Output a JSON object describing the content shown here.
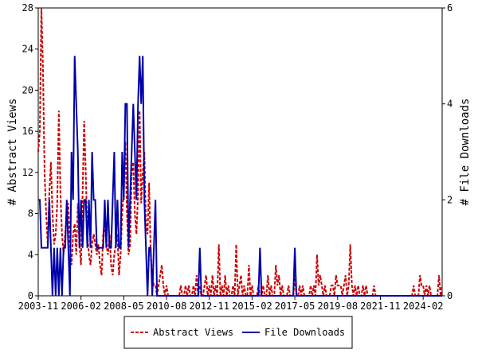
{
  "chart_data": {
    "type": "line",
    "x": [
      "2003-11",
      "2003-12",
      "2004-01",
      "2004-02",
      "2004-03",
      "2004-04",
      "2004-05",
      "2004-06",
      "2004-07",
      "2004-08",
      "2004-09",
      "2004-10",
      "2004-11",
      "2004-12",
      "2005-01",
      "2005-02",
      "2005-03",
      "2005-04",
      "2005-05",
      "2005-06",
      "2005-07",
      "2005-08",
      "2005-09",
      "2005-10",
      "2005-11",
      "2005-12",
      "2006-01",
      "2006-02",
      "2006-03",
      "2006-04",
      "2006-05",
      "2006-06",
      "2006-07",
      "2006-08",
      "2006-09",
      "2006-10",
      "2006-11",
      "2006-12",
      "2007-01",
      "2007-02",
      "2007-03",
      "2007-04",
      "2007-05",
      "2007-06",
      "2007-07",
      "2007-08",
      "2007-09",
      "2007-10",
      "2007-11",
      "2007-12",
      "2008-01",
      "2008-02",
      "2008-03",
      "2008-04",
      "2008-05",
      "2008-06",
      "2008-07",
      "2008-08",
      "2008-09",
      "2008-10",
      "2008-11",
      "2008-12",
      "2009-01",
      "2009-02",
      "2009-03",
      "2009-04",
      "2009-05",
      "2009-06",
      "2009-07",
      "2009-08",
      "2009-09",
      "2009-10",
      "2009-11",
      "2009-12",
      "2010-01",
      "2010-02",
      "2010-03",
      "2010-04",
      "2010-05",
      "2010-06",
      "2010-07",
      "2010-08",
      "2010-09",
      "2010-10",
      "2010-11",
      "2010-12",
      "2011-01",
      "2011-02",
      "2011-03",
      "2011-04",
      "2011-05",
      "2011-06",
      "2011-07",
      "2011-08",
      "2011-09",
      "2011-10",
      "2011-11",
      "2011-12",
      "2012-01",
      "2012-02",
      "2012-03",
      "2012-04",
      "2012-05",
      "2012-06",
      "2012-07",
      "2012-08",
      "2012-09",
      "2012-10",
      "2012-11",
      "2012-12",
      "2013-01",
      "2013-02",
      "2013-03",
      "2013-04",
      "2013-05",
      "2013-06",
      "2013-07",
      "2013-08",
      "2013-09",
      "2013-10",
      "2013-11",
      "2013-12",
      "2014-01",
      "2014-02",
      "2014-03",
      "2014-04",
      "2014-05",
      "2014-06",
      "2014-07",
      "2014-08",
      "2014-09",
      "2014-10",
      "2014-11",
      "2014-12",
      "2015-01",
      "2015-02",
      "2015-03",
      "2015-04",
      "2015-05",
      "2015-06",
      "2015-07",
      "2015-08",
      "2015-09",
      "2015-10",
      "2015-11",
      "2015-12",
      "2016-01",
      "2016-02",
      "2016-03",
      "2016-04",
      "2016-05",
      "2016-06",
      "2016-07",
      "2016-08",
      "2016-09",
      "2016-10",
      "2016-11",
      "2016-12",
      "2017-01",
      "2017-02",
      "2017-03",
      "2017-04",
      "2017-05",
      "2017-06",
      "2017-07",
      "2017-08",
      "2017-09",
      "2017-10",
      "2017-11",
      "2017-12",
      "2018-01",
      "2018-02",
      "2018-03",
      "2018-04",
      "2018-05",
      "2018-06",
      "2018-07",
      "2018-08",
      "2018-09",
      "2018-10",
      "2018-11",
      "2018-12",
      "2019-01",
      "2019-02",
      "2019-03",
      "2019-04",
      "2019-05",
      "2019-06",
      "2019-07",
      "2019-08",
      "2019-09",
      "2019-10",
      "2019-11",
      "2019-12",
      "2020-01",
      "2020-02",
      "2020-03",
      "2020-04",
      "2020-05",
      "2020-06",
      "2020-07",
      "2020-08",
      "2020-09",
      "2020-10",
      "2020-11",
      "2020-12",
      "2021-01",
      "2021-02",
      "2021-03",
      "2021-04",
      "2021-05",
      "2021-06",
      "2021-07",
      "2021-08",
      "2021-09",
      "2021-10",
      "2021-11",
      "2021-12",
      "2022-01",
      "2022-02",
      "2022-03",
      "2022-04",
      "2022-05",
      "2022-06",
      "2022-07",
      "2022-08",
      "2022-09",
      "2022-10",
      "2022-11",
      "2022-12",
      "2023-01",
      "2023-02",
      "2023-03",
      "2023-04",
      "2023-05",
      "2023-06",
      "2023-07",
      "2023-08",
      "2023-09",
      "2023-10",
      "2023-11",
      "2023-12",
      "2024-01",
      "2024-02",
      "2024-03",
      "2024-04",
      "2024-05",
      "2024-06",
      "2024-07",
      "2024-08",
      "2024-09",
      "2024-10",
      "2024-11",
      "2024-12",
      "2025-01",
      "2025-02"
    ],
    "xticks": [
      "2003-11",
      "2006-02",
      "2008-05",
      "2010-08",
      "2012-11",
      "2015-02",
      "2017-05",
      "2019-08",
      "2021-11",
      "2024-02"
    ],
    "ylabel": "# Abstract Views",
    "y2label": "# File Downloads",
    "ylim": [
      0,
      28
    ],
    "yticks": [
      0,
      4,
      8,
      12,
      16,
      20,
      24,
      28
    ],
    "y2lim": [
      0,
      6
    ],
    "y2ticks": [
      0,
      2,
      4,
      6
    ],
    "legend": "bottom",
    "series": [
      {
        "name": "Abstract Views",
        "color": "#cc0000",
        "dash": true,
        "values": [
          14,
          16,
          28,
          22,
          12,
          8,
          5,
          10,
          13,
          8,
          5,
          6,
          9,
          18,
          10,
          6,
          4,
          6,
          8,
          9,
          5,
          3,
          6,
          7,
          4,
          9,
          5,
          3,
          10,
          17,
          12,
          6,
          4,
          3,
          5,
          6,
          5,
          4,
          5,
          3,
          2,
          6,
          7,
          5,
          4,
          6,
          3,
          2,
          4,
          5,
          6,
          2,
          4,
          8,
          10,
          15,
          8,
          4,
          5,
          12,
          13,
          8,
          6,
          10,
          18,
          9,
          12,
          14,
          7,
          6,
          11,
          4,
          2,
          1,
          1,
          0,
          1,
          2,
          3,
          1,
          0,
          1,
          0,
          0,
          0,
          0,
          0,
          0,
          0,
          0,
          1,
          0,
          0,
          1,
          0,
          1,
          0,
          0,
          1,
          0,
          2,
          0,
          1,
          0,
          0,
          1,
          2,
          0,
          1,
          0,
          2,
          0,
          1,
          0,
          5,
          0,
          1,
          0,
          2,
          0,
          1,
          0,
          0,
          1,
          0,
          5,
          0,
          1,
          2,
          0,
          1,
          0,
          0,
          3,
          0,
          1,
          0,
          0,
          0,
          1,
          0,
          0,
          1,
          0,
          0,
          2,
          0,
          1,
          0,
          0,
          3,
          1,
          2,
          0,
          1,
          0,
          0,
          0,
          1,
          0,
          0,
          0,
          2,
          0,
          0,
          1,
          0,
          1,
          0,
          0,
          0,
          0,
          1,
          0,
          1,
          0,
          4,
          1,
          2,
          1,
          0,
          1,
          0,
          0,
          0,
          1,
          1,
          0,
          2,
          1,
          1,
          1,
          0,
          1,
          2,
          0,
          1,
          5,
          1,
          0,
          1,
          0,
          1,
          0,
          0,
          1,
          0,
          1,
          0,
          0,
          0,
          0,
          1,
          0,
          0,
          0,
          0,
          0,
          0,
          0,
          0,
          0,
          0,
          0,
          0,
          0,
          0,
          0,
          0,
          0,
          0,
          0,
          0,
          0,
          0,
          0,
          0,
          1,
          0,
          0,
          0,
          2,
          1,
          1,
          0,
          1,
          0,
          1,
          0,
          0,
          0,
          0,
          0,
          2,
          0,
          1
        ]
      },
      {
        "name": "File Downloads",
        "color": "#0000aa",
        "axis": "y2",
        "values": [
          2,
          2,
          1,
          1,
          1,
          1,
          1,
          2,
          1,
          0,
          1,
          0,
          1,
          0,
          1,
          0,
          1,
          1,
          2,
          1,
          0,
          3,
          2,
          5,
          4,
          3,
          1,
          2,
          1,
          2,
          2,
          1,
          2,
          1,
          3,
          2,
          2,
          1,
          1,
          1,
          1,
          1,
          2,
          1,
          2,
          1,
          1,
          2,
          3,
          1,
          2,
          1,
          1,
          3,
          2,
          4,
          4,
          1,
          2,
          3,
          4,
          3,
          2,
          4,
          5,
          4,
          5,
          2,
          1,
          0,
          1,
          1,
          0,
          1,
          2,
          0,
          0,
          0,
          0,
          0,
          0,
          0,
          0,
          0,
          0,
          0,
          0,
          0,
          0,
          0,
          0,
          0,
          0,
          0,
          0,
          0,
          0,
          0,
          0,
          0,
          0,
          0,
          1,
          0,
          0,
          0,
          0,
          0,
          0,
          0,
          0,
          0,
          0,
          0,
          0,
          0,
          0,
          0,
          0,
          0,
          0,
          0,
          0,
          0,
          0,
          0,
          0,
          0,
          0,
          0,
          0,
          0,
          0,
          0,
          0,
          0,
          0,
          0,
          0,
          0,
          1,
          0,
          0,
          0,
          0,
          0,
          0,
          0,
          0,
          0,
          0,
          0,
          0,
          0,
          0,
          0,
          0,
          0,
          0,
          0,
          0,
          0,
          1,
          0,
          0,
          0,
          0,
          0,
          0,
          0,
          0,
          0,
          0,
          0,
          0,
          0,
          0,
          0,
          0,
          0,
          0,
          0,
          0,
          0,
          0,
          0,
          0,
          0,
          0,
          0,
          0,
          0,
          0,
          0,
          0,
          0,
          0,
          0,
          0,
          0,
          0,
          0,
          0,
          0,
          0,
          0,
          0,
          0,
          0,
          0,
          0,
          0,
          0,
          0,
          0,
          0,
          0,
          0,
          0,
          0,
          0,
          0,
          0,
          0,
          0,
          0,
          0,
          0,
          0,
          0,
          0,
          0,
          0,
          0,
          0,
          0,
          0,
          0,
          0,
          0,
          0,
          0,
          0,
          0,
          0,
          0,
          0,
          0,
          0,
          0,
          0,
          0,
          0,
          0,
          0,
          0
        ]
      }
    ]
  }
}
